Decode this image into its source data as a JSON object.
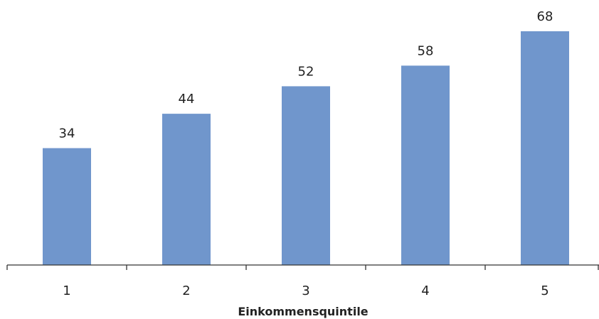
{
  "chart_data": {
    "type": "bar",
    "title": "",
    "xlabel": "Einkommensquintile",
    "ylabel": "",
    "categories": [
      "1",
      "2",
      "3",
      "4",
      "5"
    ],
    "values": [
      34,
      44,
      52,
      58,
      68
    ],
    "ylim": [
      0,
      68
    ],
    "grid": false,
    "legend": "none",
    "bar_color": "#7096cc",
    "axis_color": "#333333"
  }
}
